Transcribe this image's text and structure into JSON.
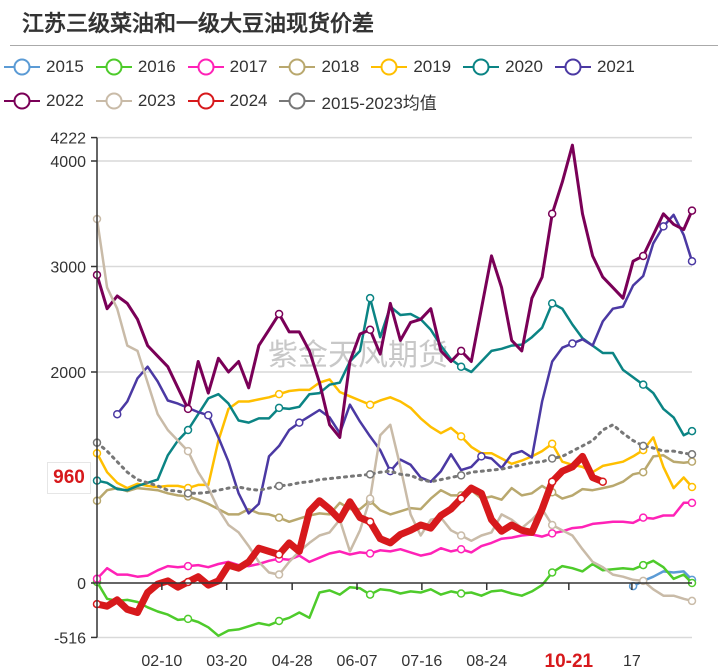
{
  "chart_data": {
    "type": "line",
    "title": "江苏三级菜油和一级大豆油现货价差",
    "xlabel": "",
    "ylabel": "",
    "ylim": [
      -516,
      4222
    ],
    "yticks": [
      "4222",
      "4000",
      "3000",
      "2000",
      "0",
      "-516"
    ],
    "ytick_values": [
      4222,
      4000,
      3000,
      2000,
      0,
      -516
    ],
    "xticks": [
      "02-10",
      "03-20",
      "04-28",
      "06-07",
      "07-16",
      "08-24",
      "10-21",
      "17"
    ],
    "xtick_positions": [
      0.109,
      0.218,
      0.328,
      0.437,
      0.546,
      0.655,
      0.793,
      0.899
    ],
    "highlight_xtick": "10-21",
    "latest_value_label": "960",
    "grid": true,
    "legend_position": "top",
    "watermark": "紫金天风期货",
    "x": [
      0,
      0.017,
      0.034,
      0.051,
      0.068,
      0.085,
      0.102,
      0.119,
      0.136,
      0.153,
      0.17,
      0.187,
      0.204,
      0.221,
      0.238,
      0.255,
      0.272,
      0.289,
      0.306,
      0.323,
      0.34,
      0.357,
      0.374,
      0.391,
      0.408,
      0.425,
      0.442,
      0.459,
      0.476,
      0.493,
      0.51,
      0.527,
      0.544,
      0.561,
      0.578,
      0.595,
      0.612,
      0.629,
      0.646,
      0.663,
      0.68,
      0.697,
      0.714,
      0.731,
      0.748,
      0.765,
      0.782,
      0.799,
      0.816,
      0.833,
      0.85,
      0.867,
      0.884,
      0.901,
      0.918,
      0.935,
      0.952,
      0.969,
      0.986,
      1.0
    ],
    "series": [
      {
        "name": "2015",
        "color": "#5b9bd5",
        "width": 2.5,
        "values": [
          null,
          null,
          null,
          null,
          null,
          null,
          null,
          null,
          null,
          null,
          null,
          null,
          null,
          null,
          null,
          null,
          null,
          null,
          null,
          null,
          null,
          null,
          null,
          null,
          null,
          null,
          null,
          null,
          null,
          null,
          null,
          null,
          null,
          null,
          null,
          null,
          null,
          null,
          null,
          null,
          null,
          null,
          null,
          null,
          null,
          null,
          null,
          null,
          null,
          null,
          null,
          null,
          null,
          -30,
          20,
          60,
          110,
          100,
          110,
          30
        ]
      },
      {
        "name": "2016",
        "color": "#4ecb2b",
        "width": 2.5,
        "values": [
          10,
          -150,
          -170,
          -160,
          -180,
          -230,
          -270,
          -300,
          -350,
          -340,
          -370,
          -420,
          -500,
          -450,
          -440,
          -410,
          -380,
          -400,
          -360,
          -330,
          -280,
          -330,
          -90,
          -70,
          -110,
          -40,
          -50,
          -110,
          -60,
          -70,
          -100,
          -80,
          -90,
          -60,
          -110,
          -80,
          -100,
          -90,
          -120,
          -80,
          -70,
          -100,
          -120,
          -80,
          -20,
          100,
          160,
          140,
          110,
          180,
          120,
          130,
          140,
          130,
          170,
          210,
          150,
          40,
          80,
          0
        ]
      },
      {
        "name": "2017",
        "color": "#ff22b7",
        "width": 2.5,
        "values": [
          40,
          140,
          80,
          80,
          60,
          70,
          120,
          160,
          150,
          160,
          170,
          150,
          180,
          200,
          170,
          160,
          180,
          210,
          230,
          220,
          260,
          200,
          240,
          280,
          300,
          270,
          290,
          280,
          310,
          300,
          320,
          290,
          260,
          280,
          330,
          300,
          320,
          290,
          350,
          380,
          420,
          430,
          450,
          460,
          440,
          470,
          490,
          520,
          530,
          560,
          570,
          580,
          580,
          570,
          620,
          610,
          640,
          640,
          760,
          760
        ]
      },
      {
        "name": "2018",
        "color": "#b9a86e",
        "width": 2.5,
        "values": [
          780,
          880,
          900,
          870,
          900,
          890,
          880,
          850,
          830,
          820,
          790,
          750,
          700,
          650,
          650,
          700,
          660,
          650,
          620,
          580,
          610,
          640,
          660,
          650,
          760,
          700,
          700,
          780,
          690,
          650,
          680,
          710,
          700,
          800,
          880,
          830,
          830,
          880,
          800,
          820,
          790,
          900,
          830,
          850,
          920,
          860,
          800,
          830,
          890,
          880,
          900,
          920,
          960,
          1030,
          1050,
          1200,
          1210,
          1150,
          1140,
          1150
        ]
      },
      {
        "name": "2019",
        "color": "#ffbf00",
        "width": 2.5,
        "values": [
          1230,
          1050,
          950,
          900,
          940,
          920,
          910,
          920,
          920,
          900,
          930,
          930,
          1350,
          1650,
          1720,
          1720,
          1740,
          1760,
          1790,
          1820,
          1830,
          1830,
          1900,
          1930,
          1810,
          1770,
          1730,
          1690,
          1730,
          1760,
          1720,
          1660,
          1560,
          1480,
          1420,
          1470,
          1390,
          1290,
          1230,
          1230,
          1180,
          1130,
          1160,
          1200,
          1250,
          1320,
          1150,
          1120,
          1100,
          1050,
          1110,
          1130,
          1150,
          1200,
          1260,
          1380,
          1100,
          900,
          1000,
          910
        ]
      },
      {
        "name": "2020",
        "color": "#0b8484",
        "width": 2.5,
        "values": [
          970,
          950,
          890,
          880,
          920,
          950,
          980,
          1210,
          1350,
          1450,
          1600,
          1750,
          1790,
          1700,
          1540,
          1520,
          1560,
          1560,
          1660,
          1650,
          1670,
          1790,
          1800,
          1880,
          1900,
          2100,
          2200,
          2700,
          2330,
          2620,
          2540,
          2550,
          2500,
          2400,
          2250,
          2120,
          2050,
          2000,
          2100,
          2200,
          2220,
          2250,
          2260,
          2330,
          2420,
          2650,
          2600,
          2450,
          2320,
          2250,
          2180,
          2180,
          2020,
          1950,
          1880,
          1800,
          1650,
          1570,
          1400,
          1440
        ]
      },
      {
        "name": "2021",
        "color": "#4b39a3",
        "width": 2.5,
        "values": [
          null,
          null,
          1600,
          1720,
          1940,
          2050,
          1910,
          1730,
          1700,
          1660,
          1620,
          1590,
          1380,
          1150,
          850,
          660,
          750,
          1200,
          1300,
          1450,
          1520,
          1580,
          1640,
          1570,
          1420,
          1690,
          1530,
          1390,
          1260,
          1060,
          1170,
          1120,
          1000,
          960,
          1060,
          1220,
          1070,
          1100,
          1200,
          1180,
          1090,
          1220,
          1250,
          1190,
          1720,
          2100,
          2230,
          2270,
          2310,
          2250,
          2480,
          2600,
          2620,
          2820,
          2910,
          3220,
          3380,
          3490,
          3300,
          3050
        ]
      },
      {
        "name": "2022",
        "color": "#7a0057",
        "width": 3,
        "values": [
          2920,
          2600,
          2720,
          2650,
          2500,
          2250,
          2150,
          2050,
          1850,
          1650,
          2100,
          1800,
          2130,
          2000,
          2100,
          1850,
          2250,
          2400,
          2550,
          2380,
          2380,
          2200,
          1900,
          1500,
          1380,
          2100,
          2360,
          2400,
          2170,
          2650,
          2300,
          2470,
          2500,
          2600,
          2200,
          2100,
          2200,
          2100,
          2600,
          3100,
          2800,
          2300,
          2200,
          2700,
          2900,
          3500,
          3800,
          4150,
          3500,
          3100,
          2900,
          2800,
          2700,
          3050,
          3100,
          3300,
          3500,
          3400,
          3350,
          3530
        ]
      },
      {
        "name": "2023",
        "color": "#c9bba8",
        "width": 2.5,
        "values": [
          3450,
          2800,
          2600,
          2250,
          2200,
          1900,
          1600,
          1450,
          1350,
          1250,
          1050,
          900,
          700,
          550,
          480,
          350,
          200,
          100,
          80,
          200,
          300,
          380,
          450,
          480,
          600,
          300,
          500,
          800,
          1400,
          1500,
          1100,
          650,
          450,
          600,
          620,
          500,
          450,
          400,
          450,
          480,
          650,
          600,
          520,
          600,
          700,
          550,
          500,
          450,
          320,
          200,
          150,
          80,
          60,
          30,
          20,
          -60,
          -120,
          -120,
          -150,
          -170
        ]
      },
      {
        "name": "2024",
        "color": "#d7191c",
        "width": 7,
        "values": [
          -200,
          -220,
          -160,
          -250,
          -280,
          -90,
          -10,
          20,
          -40,
          10,
          60,
          -20,
          20,
          170,
          140,
          200,
          330,
          300,
          270,
          380,
          300,
          680,
          780,
          700,
          600,
          770,
          620,
          580,
          420,
          380,
          460,
          500,
          550,
          520,
          640,
          700,
          800,
          900,
          850,
          600,
          490,
          550,
          500,
          480,
          700,
          960,
          1060,
          1100,
          1200,
          1000,
          960,
          null,
          null,
          null,
          null,
          null,
          null,
          null,
          null,
          null
        ]
      },
      {
        "name": "2015-2023均值",
        "color": "#777777",
        "width": 3,
        "dash": "2,5",
        "values": [
          1330,
          1250,
          1150,
          1050,
          980,
          950,
          920,
          880,
          870,
          850,
          850,
          860,
          880,
          900,
          910,
          890,
          880,
          900,
          920,
          930,
          950,
          960,
          980,
          990,
          1000,
          1010,
          1020,
          1030,
          1050,
          1060,
          1030,
          1020,
          980,
          960,
          980,
          1000,
          1020,
          1050,
          1060,
          1070,
          1080,
          1100,
          1120,
          1140,
          1150,
          1180,
          1200,
          1250,
          1300,
          1350,
          1450,
          1500,
          1420,
          1350,
          1300,
          1280,
          1250,
          1250,
          1230,
          1220
        ]
      }
    ]
  },
  "legend": {
    "row1": [
      "2015",
      "2016",
      "2017",
      "2018",
      "2019",
      "2020",
      "2021"
    ],
    "row2": [
      "2022",
      "2023",
      "2024",
      "2015-2023均值"
    ]
  }
}
